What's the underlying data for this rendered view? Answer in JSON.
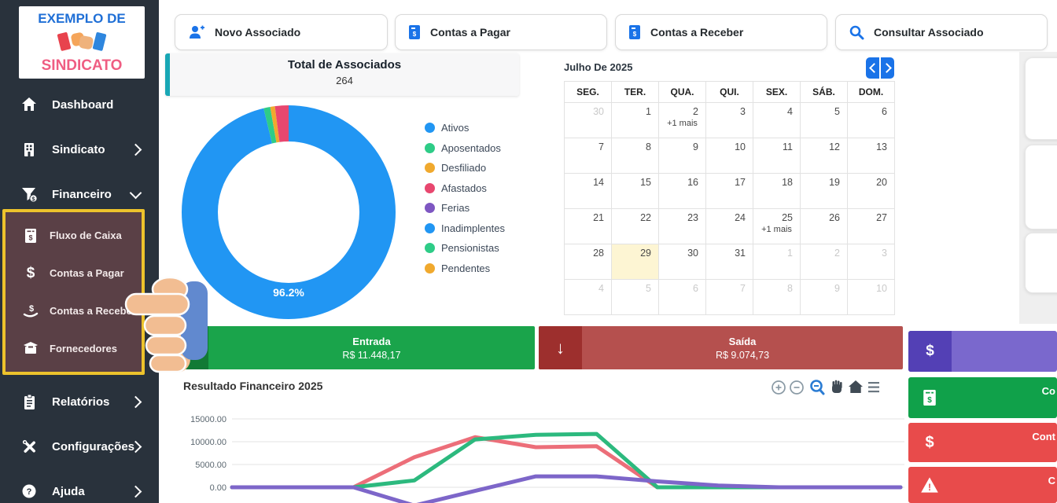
{
  "colors": {
    "sidebar_bg": "#29323c",
    "submenu_bg": "#5a4046",
    "highlight_border": "#edc32c",
    "accent_blue": "#1a73e8",
    "teal_accent": "#18a7b5",
    "entrada_green": "#1aa44b",
    "saida_red": "#b5504e",
    "purple_bar": "#7a68cd",
    "panel_green": "#10a14a",
    "panel_red": "#e84b4b",
    "today_bg": "#fdf5d3"
  },
  "icons": {
    "dollar": "$",
    "question": "?",
    "exclaim": "!"
  },
  "sidebar": {
    "logo": {
      "line1": "EXEMPLO DE",
      "line2": "SINDICATO",
      "icon": "handshake-icon"
    },
    "items": [
      {
        "label": "Dashboard",
        "icon": "home-icon"
      },
      {
        "label": "Sindicato",
        "icon": "building-icon",
        "chevron": "right"
      },
      {
        "label": "Financeiro",
        "icon": "funnel-dollar-icon",
        "chevron": "down"
      }
    ],
    "submenu": {
      "items": [
        {
          "label": "Fluxo de Caixa",
          "icon": "invoice-icon"
        },
        {
          "label": "Contas a Pagar",
          "icon": "dollar-icon"
        },
        {
          "label": "Contas a Receber",
          "icon": "hand-dollar-icon"
        },
        {
          "label": "Fornecedores",
          "icon": "box-icon"
        }
      ]
    },
    "items_bottom": [
      {
        "label": "Relatórios",
        "icon": "clipboard-icon",
        "chevron": "right"
      },
      {
        "label": "Configurações",
        "icon": "tools-icon",
        "chevron": "right"
      },
      {
        "label": "Ajuda",
        "icon": "question-icon",
        "chevron": "right"
      }
    ]
  },
  "topbar": {
    "buttons": [
      {
        "label": "Novo Associado",
        "icon": "person-add-icon"
      },
      {
        "label": "Contas a Pagar",
        "icon": "invoice-icon"
      },
      {
        "label": "Contas a Receber",
        "icon": "invoice-icon"
      },
      {
        "label": "Consultar Associado",
        "icon": "search-icon"
      }
    ]
  },
  "associados": {
    "title": "Total de Associados",
    "total": "264",
    "donut_label": "96.2%",
    "slices": [
      {
        "label": "Ativos",
        "pct": 96.2,
        "color": "#2196f3"
      },
      {
        "label": "Aposentados",
        "pct": 1.0,
        "color": "#2ecc87"
      },
      {
        "label": "Desfiliado",
        "pct": 0.7,
        "color": "#f0a92e"
      },
      {
        "label": "Afastados",
        "pct": 2.1,
        "color": "#e8476f"
      }
    ],
    "legend": [
      {
        "label": "Ativos",
        "color": "#2196f3"
      },
      {
        "label": "Aposentados",
        "color": "#2ecc87"
      },
      {
        "label": "Desfiliado",
        "color": "#f0a92e"
      },
      {
        "label": "Afastados",
        "color": "#e8476f"
      },
      {
        "label": "Ferias",
        "color": "#7e57c2"
      },
      {
        "label": "Inadimplentes",
        "color": "#2196f3"
      },
      {
        "label": "Pensionistas",
        "color": "#2ecc87"
      },
      {
        "label": "Pendentes",
        "color": "#f0a92e"
      }
    ]
  },
  "calendar": {
    "title": "Julho De 2025",
    "days": [
      "SEG.",
      "TER.",
      "QUA.",
      "QUI.",
      "SEX.",
      "SÁB.",
      "DOM."
    ],
    "weeks": [
      [
        {
          "d": "30",
          "muted": true
        },
        {
          "d": "1"
        },
        {
          "d": "2",
          "extra": "+1 mais"
        },
        {
          "d": "3"
        },
        {
          "d": "4"
        },
        {
          "d": "5"
        },
        {
          "d": "6"
        }
      ],
      [
        {
          "d": "7"
        },
        {
          "d": "8"
        },
        {
          "d": "9"
        },
        {
          "d": "10"
        },
        {
          "d": "11"
        },
        {
          "d": "12"
        },
        {
          "d": "13"
        }
      ],
      [
        {
          "d": "14"
        },
        {
          "d": "15"
        },
        {
          "d": "16"
        },
        {
          "d": "17"
        },
        {
          "d": "18"
        },
        {
          "d": "19"
        },
        {
          "d": "20"
        }
      ],
      [
        {
          "d": "21"
        },
        {
          "d": "22"
        },
        {
          "d": "23"
        },
        {
          "d": "24"
        },
        {
          "d": "25",
          "extra": "+1 mais"
        },
        {
          "d": "26"
        },
        {
          "d": "27"
        }
      ],
      [
        {
          "d": "28"
        },
        {
          "d": "29",
          "today": true
        },
        {
          "d": "30"
        },
        {
          "d": "31"
        },
        {
          "d": "1",
          "muted": true
        },
        {
          "d": "2",
          "muted": true
        },
        {
          "d": "3",
          "muted": true
        }
      ],
      [
        {
          "d": "4",
          "muted": true
        },
        {
          "d": "5",
          "muted": true
        },
        {
          "d": "6",
          "muted": true
        },
        {
          "d": "7",
          "muted": true
        },
        {
          "d": "8",
          "muted": true
        },
        {
          "d": "9",
          "muted": true
        },
        {
          "d": "10",
          "muted": true
        }
      ]
    ]
  },
  "totals": {
    "entrada": {
      "label": "Entrada",
      "value": "R$ 11.448,17",
      "arrow": "↑"
    },
    "saida": {
      "label": "Saída",
      "value": "R$ 9.074,73",
      "arrow": "↓"
    }
  },
  "right_panels": {
    "purple": {
      "icon": "dollar-icon"
    },
    "green": {
      "icon": "invoice-icon",
      "text_fragment": "Co"
    },
    "red1": {
      "icon": "dollar-icon",
      "text_fragment": "Cont"
    },
    "red2": {
      "icon": "warning-icon",
      "text_fragment": "C"
    }
  },
  "chart_data": {
    "type": "line",
    "title": "Resultado Financeiro 2025",
    "yticks": [
      "15000.00",
      "10000.00",
      "5000.00",
      "0.00"
    ],
    "grid": true,
    "x_axis_labels_visible": false,
    "series": [
      {
        "name": "red",
        "color": "#ec6e79",
        "values": [
          0,
          0,
          0,
          6600,
          11000,
          8800,
          9000,
          0,
          0,
          0,
          0,
          0
        ]
      },
      {
        "name": "green",
        "color": "#2cb97e",
        "values": [
          0,
          0,
          0,
          1500,
          10500,
          11500,
          11700,
          0,
          0,
          0,
          0,
          0
        ]
      },
      {
        "name": "purple",
        "color": "#7d66c9",
        "values": [
          0,
          0,
          0,
          -4000,
          -800,
          2400,
          2400,
          1300,
          400,
          0,
          0,
          0
        ]
      }
    ],
    "toolbar_icons": [
      "zoom-in",
      "zoom-out",
      "reset-zoom",
      "pan",
      "home",
      "menu"
    ]
  }
}
